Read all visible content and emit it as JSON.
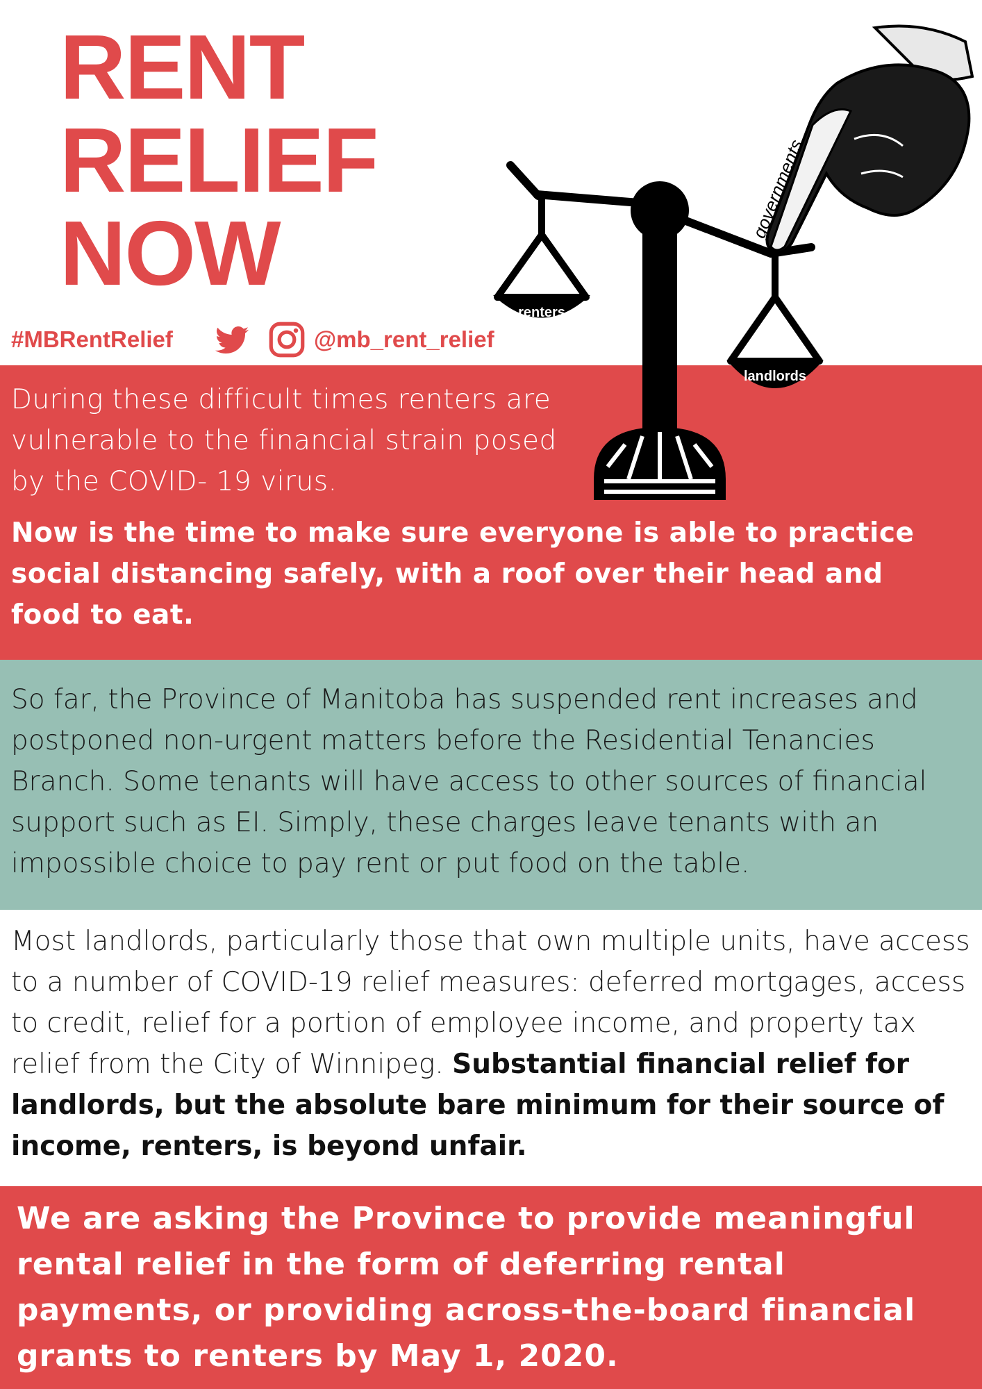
{
  "title": {
    "line1": "RENT",
    "line2": "RELIEF",
    "line3": "NOW"
  },
  "social": {
    "hashtag": "#MBRentRelief",
    "handle": "@mb_rent_relief",
    "icons": [
      "twitter-icon",
      "instagram-icon"
    ]
  },
  "illustration": {
    "left_pan_label": "renters",
    "right_pan_label": "landlords",
    "hand_label": "governments"
  },
  "intro": {
    "text": "During these difficult times renters are vulnerable to the financial strain posed by the COVID- 19 virus.",
    "emphasis": "Now is the time to make sure everyone is able to practice social distancing safely, with a roof over their head and food to eat."
  },
  "province": {
    "text": "So far, the Province of Manitoba has suspended rent increases and postponed non-urgent matters before the Residential Tenancies Branch. Some tenants will have access to other sources of financial support such as EI. Simply, these charges leave tenants with an impossible choice to pay rent or put food on the table."
  },
  "landlords": {
    "text": "Most landlords, particularly those that own multiple units, have access to a number of COVID-19 relief measures: deferred mortgages, access to credit, relief for a portion of employee income, and property tax relief from the City of Winnipeg.",
    "emphasis": "Substantial financial relief for landlords, but the absolute bare minimum for their source of income, renters, is beyond unfair."
  },
  "ask": {
    "text": "We are asking the Province to provide meaningful rental relief in the form of deferring rental payments, or providing across-the-board financial grants to renters by May 1, 2020."
  },
  "colors": {
    "red": "#e04a4b",
    "teal": "#97bfb4",
    "white": "#ffffff",
    "black": "#000000"
  }
}
